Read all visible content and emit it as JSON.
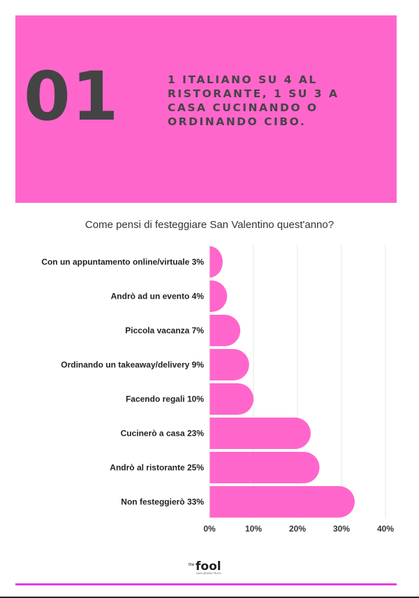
{
  "header": {
    "number": "01",
    "headline_lines": [
      "1 ITALIANO SU 4 AL",
      "RISTORANTE, 1 SU 3 A",
      "CASA CUCINANDO O",
      "ORDINANDO CIBO."
    ]
  },
  "chart_data": {
    "type": "bar",
    "orientation": "horizontal",
    "title": "Come pensi di festeggiare San Valentino quest'anno?",
    "categories": [
      "Con un appuntamento online/virtuale 3%",
      "Andrò ad un evento 4%",
      "Piccola vacanza 7%",
      "Ordinando un takeaway/delivery 9%",
      "Facendo regali 10%",
      "Cucinerò a casa 23%",
      "Andrò al ristorante 25%",
      "Non festeggierò 33%"
    ],
    "values": [
      3,
      4,
      7,
      9,
      10,
      23,
      25,
      33
    ],
    "xlim": [
      0,
      40
    ],
    "x_ticks": [
      "0%",
      "10%",
      "20%",
      "30%",
      "40%"
    ],
    "grid": true,
    "bar_color": "#ff66cc"
  },
  "footer": {
    "logo_small": "the",
    "logo_main": "fool",
    "logo_tagline": "DATA DRIVEN TRUTH"
  },
  "colors": {
    "banner": "#ff66cc",
    "text_dark": "#444444",
    "footer_line": "#e040e0"
  }
}
